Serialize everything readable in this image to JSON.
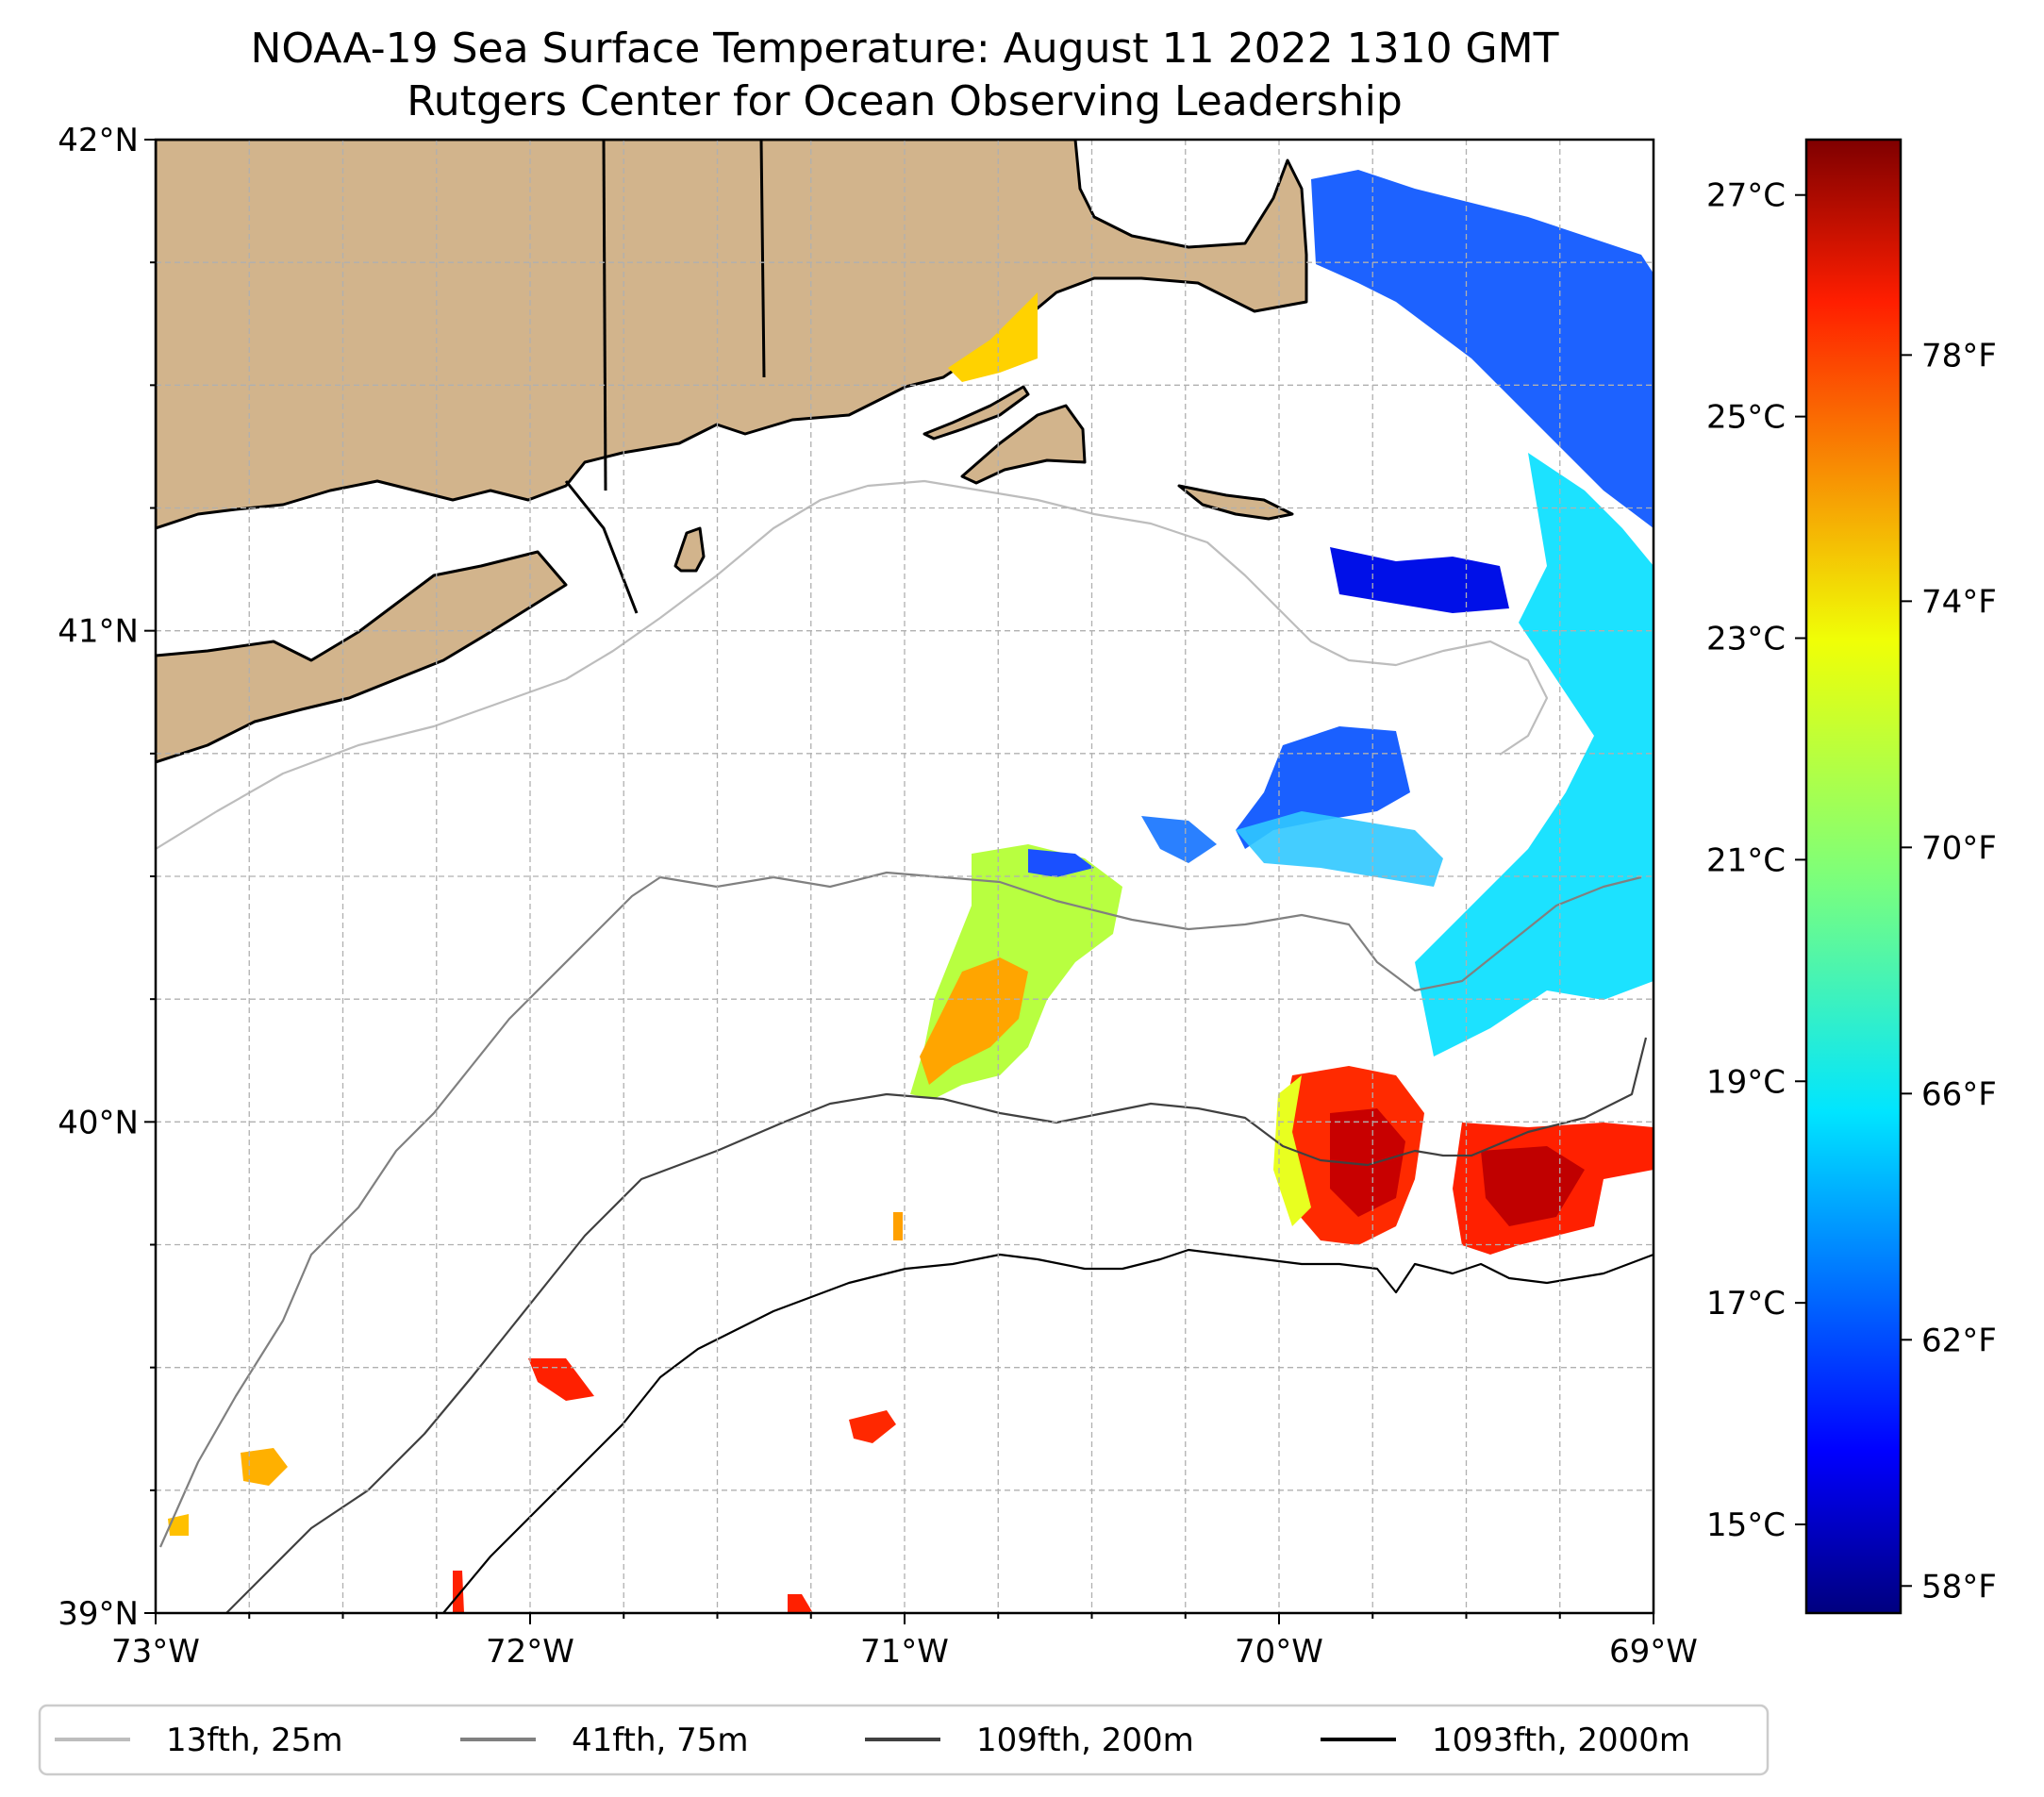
{
  "title": {
    "line1": "NOAA-19 Sea Surface Temperature: August 11 2022 1310 GMT",
    "line2": "Rutgers Center for Ocean Observing Leadership"
  },
  "map": {
    "lon_range": [
      -73,
      -69
    ],
    "lat_range": [
      39,
      42
    ],
    "lat_ticks": [
      {
        "value": 42,
        "label": "42°N"
      },
      {
        "value": 41,
        "label": "41°N"
      },
      {
        "value": 40,
        "label": "40°N"
      },
      {
        "value": 39,
        "label": "39°N"
      }
    ],
    "lon_ticks": [
      {
        "value": -73,
        "label": "73°W"
      },
      {
        "value": -72,
        "label": "72°W"
      },
      {
        "value": -71,
        "label": "71°W"
      },
      {
        "value": -70,
        "label": "70°W"
      },
      {
        "value": -69,
        "label": "69°W"
      }
    ],
    "land_color": "#d2b48c",
    "grid": true
  },
  "colorbar": {
    "colormap": "jet",
    "range_c": [
      14.2,
      27.5
    ],
    "celsius_ticks": [
      {
        "value": 27,
        "label": "27°C"
      },
      {
        "value": 25,
        "label": "25°C"
      },
      {
        "value": 23,
        "label": "23°C"
      },
      {
        "value": 21,
        "label": "21°C"
      },
      {
        "value": 19,
        "label": "19°C"
      },
      {
        "value": 17,
        "label": "17°C"
      },
      {
        "value": 15,
        "label": "15°C"
      }
    ],
    "fahrenheit_ticks": [
      {
        "value": 78,
        "label": "78°F"
      },
      {
        "value": 74,
        "label": "74°F"
      },
      {
        "value": 70,
        "label": "70°F"
      },
      {
        "value": 66,
        "label": "66°F"
      },
      {
        "value": 62,
        "label": "62°F"
      },
      {
        "value": 58,
        "label": "58°F"
      }
    ]
  },
  "legend": [
    {
      "label": "13fth, 25m",
      "color": "#bdbdbd"
    },
    {
      "label": "41fth, 75m",
      "color": "#808080"
    },
    {
      "label": "109fth, 200m",
      "color": "#404040"
    },
    {
      "label": "1093fth, 2000m",
      "color": "#000000"
    }
  ]
}
